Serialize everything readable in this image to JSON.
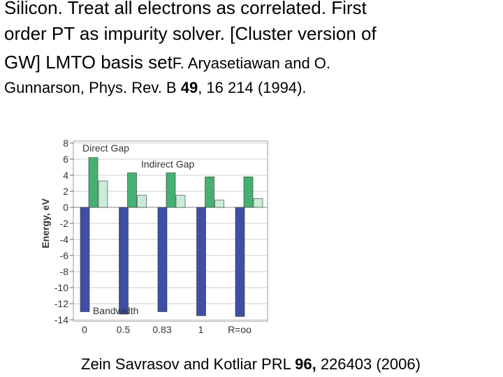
{
  "text": {
    "line1": "Silicon.   Treat all electrons as correlated. First",
    "line2": "order PT as impurity solver. [Cluster version of",
    "line3": "GW] LMTO basis set",
    "line3_ref": "F. Aryasetiawan and O.",
    "line4_a": "Gunnarson, Phys. Rev. B ",
    "line4_b": "49",
    "line4_c": ", 16 214 (1994).",
    "footer_a": "Zein Savrasov and Kotliar  PRL ",
    "footer_b": "96,",
    "footer_c": " 226403 (2006)"
  },
  "chart_data": {
    "type": "bar",
    "y_label": "Energy, eV",
    "categories": [
      "0",
      "0.5",
      "0.83",
      "1",
      "R=oo"
    ],
    "series": [
      {
        "name": "Bandwidth",
        "color": "#3f4fa6",
        "values": [
          -13,
          -13.3,
          -13,
          -13.5,
          -13.6
        ]
      },
      {
        "name": "Direct Gap",
        "color": "#46b072",
        "values": [
          6.2,
          4.3,
          4.3,
          3.8,
          3.8
        ]
      },
      {
        "name": "Indirect Gap",
        "color": "#c8ecd8",
        "values": [
          3.3,
          1.5,
          1.5,
          0.9,
          1.1
        ]
      }
    ],
    "ylim": [
      -14,
      8
    ],
    "yticks": [
      -14,
      -12,
      -10,
      -8,
      -6,
      -4,
      -2,
      0,
      2,
      4,
      6,
      8
    ],
    "grid": true
  }
}
